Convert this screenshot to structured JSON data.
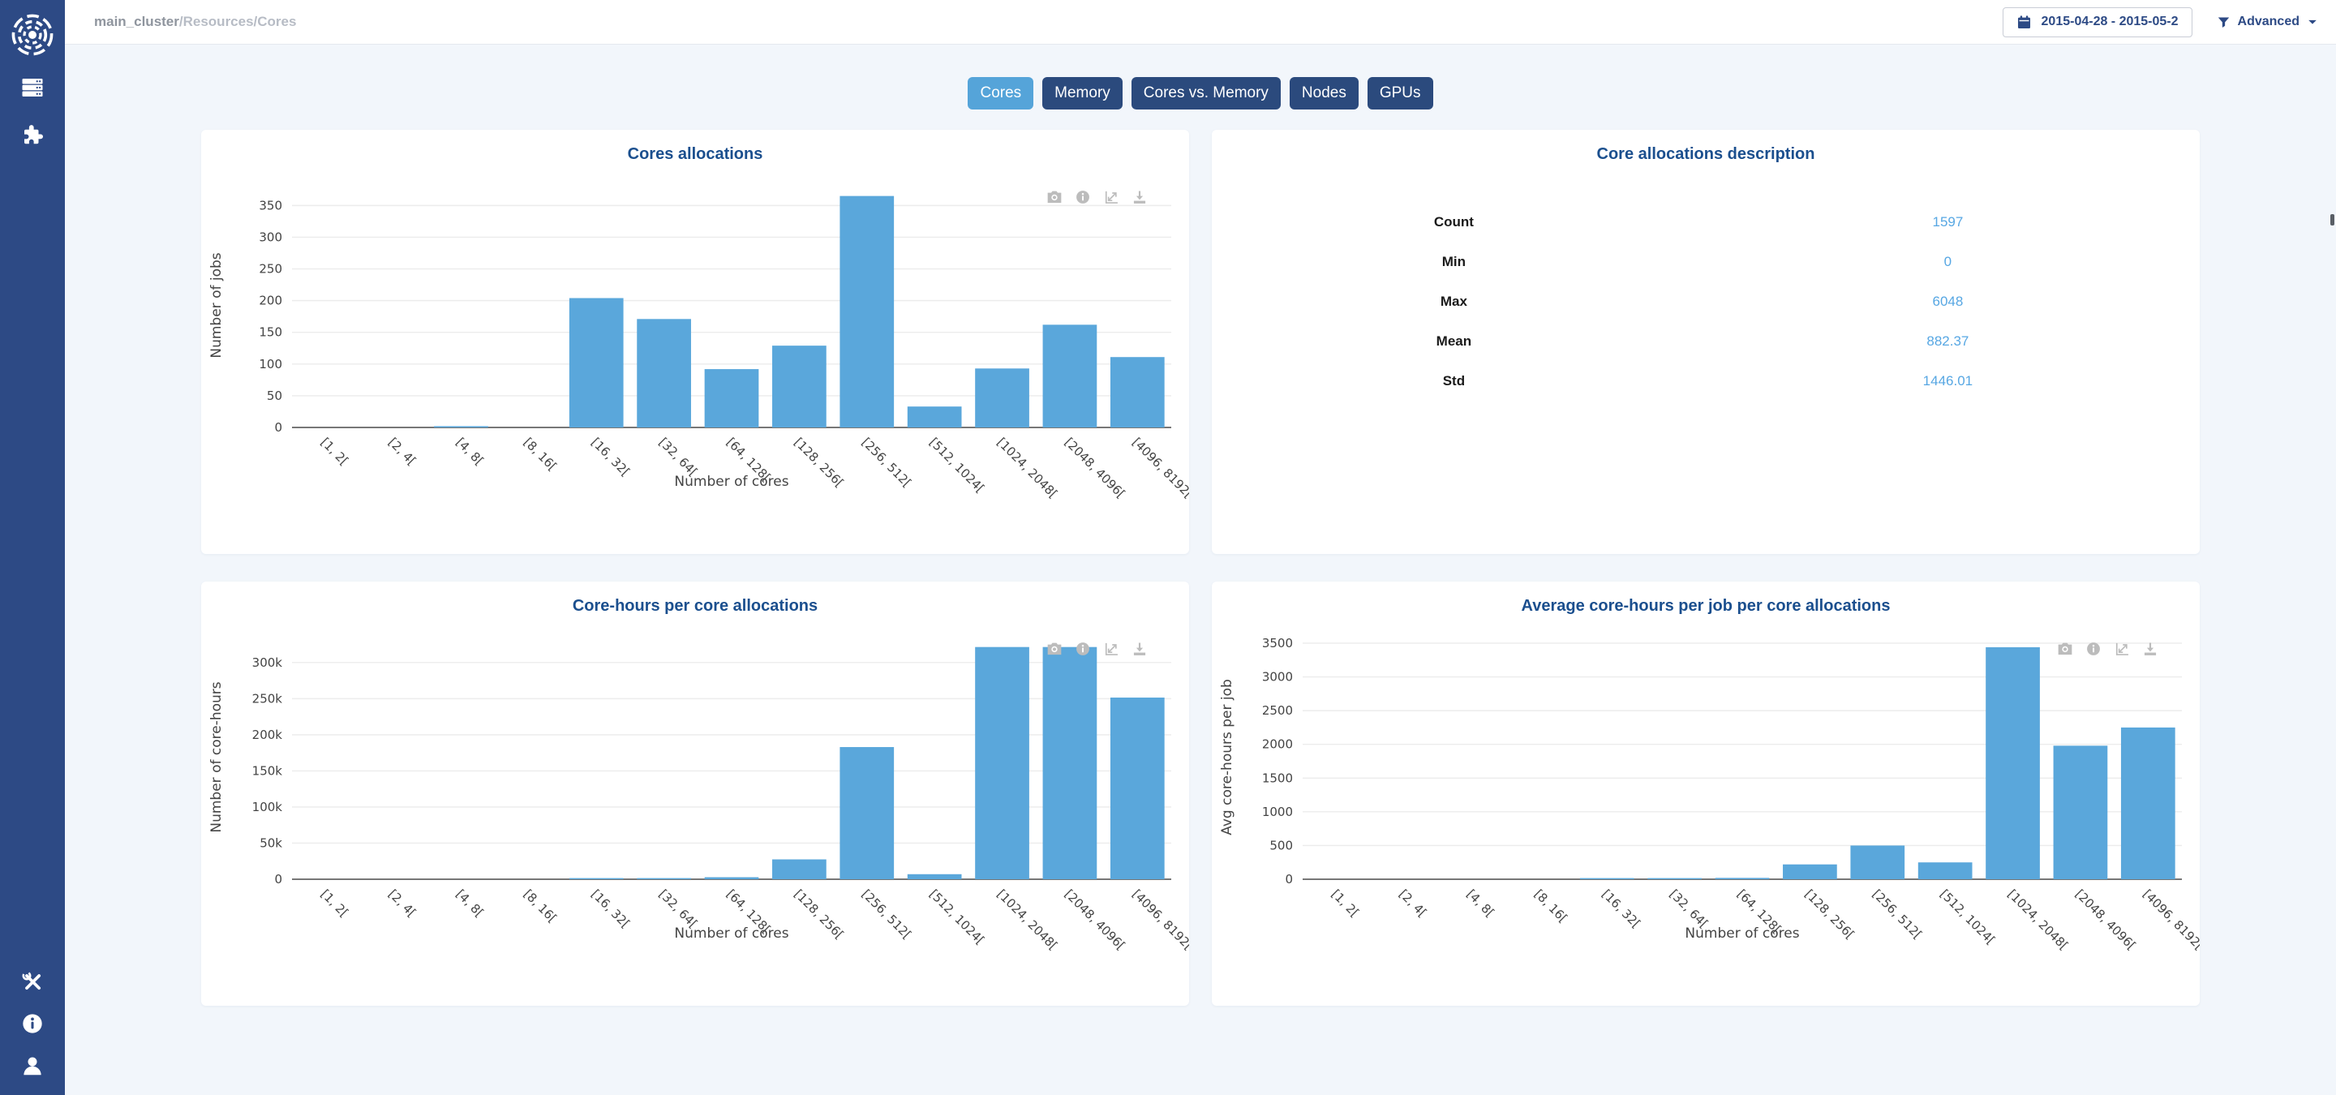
{
  "header": {
    "breadcrumb_main": "main_cluster",
    "breadcrumb_rest": "/Resources/Cores",
    "date_range": "2015-04-28 - 2015-05-2",
    "advanced_label": "Advanced"
  },
  "tabs": [
    {
      "label": "Cores",
      "active": true
    },
    {
      "label": "Memory",
      "active": false
    },
    {
      "label": "Cores vs. Memory",
      "active": false
    },
    {
      "label": "Nodes",
      "active": false
    },
    {
      "label": "GPUs",
      "active": false
    }
  ],
  "sidebar_icons": [
    "logo",
    "servers",
    "plugins",
    "tools",
    "info",
    "user"
  ],
  "modebar_icons": [
    "camera",
    "info",
    "autoscale",
    "download"
  ],
  "stats_panel": {
    "title": "Core allocations description",
    "rows": [
      {
        "label": "Count",
        "value": "1597"
      },
      {
        "label": "Min",
        "value": "0"
      },
      {
        "label": "Max",
        "value": "6048"
      },
      {
        "label": "Mean",
        "value": "882.37"
      },
      {
        "label": "Std",
        "value": "1446.01"
      }
    ]
  },
  "colors": {
    "sidebar": "#2d4a85",
    "tab_active": "#55a4d9",
    "tab_inactive": "#2b4a7d",
    "panel_title": "#1b4f8e",
    "bar": "#5aa7db",
    "stat_value": "#57a7e3",
    "page_background": "#f2f6fb"
  },
  "chart_data": [
    {
      "type": "bar",
      "title": "Cores allocations",
      "xlabel": "Number of cores",
      "ylabel": "Number of jobs",
      "categories": [
        "[1, 2[",
        "[2, 4[",
        "[4, 8[",
        "[8, 16[",
        "[16, 32[",
        "[32, 64[",
        "[64, 128[",
        "[128, 256[",
        "[256, 512[",
        "[512, 1024[",
        "[1024, 2048[",
        "[2048, 4096[",
        "[4096, 8192["
      ],
      "values": [
        0,
        0,
        2,
        0,
        204,
        171,
        92,
        129,
        365,
        33,
        93,
        162,
        111
      ],
      "ylim": [
        0,
        385
      ],
      "yticks": {
        "step": 50,
        "max": 350,
        "format": "plain"
      },
      "grid": true,
      "legend": "none",
      "bar_color": "#5aa7db"
    },
    {
      "type": "bar",
      "title": "Core-hours per core allocations",
      "xlabel": "Number of cores",
      "ylabel": "Number of core-hours",
      "categories": [
        "[1, 2[",
        "[2, 4[",
        "[4, 8[",
        "[8, 16[",
        "[16, 32[",
        "[32, 64[",
        "[64, 128[",
        "[128, 256[",
        "[256, 512[",
        "[512, 1024[",
        "[1024, 2048[",
        "[2048, 4096[",
        "[4096, 8192["
      ],
      "values": [
        0,
        0,
        0,
        0,
        1200,
        1500,
        2800,
        27500,
        183000,
        7000,
        321500,
        321500,
        251500
      ],
      "ylim": [
        0,
        338000
      ],
      "yticks": {
        "step": 50000,
        "max": 300000,
        "format": "k"
      },
      "grid": true,
      "legend": "none",
      "bar_color": "#5aa7db"
    },
    {
      "type": "bar",
      "title": "Average core-hours per job per core allocations",
      "xlabel": "Number of cores",
      "ylabel": "Avg core-hours per job",
      "categories": [
        "[1, 2[",
        "[2, 4[",
        "[4, 8[",
        "[8, 16[",
        "[16, 32[",
        "[32, 64[",
        "[64, 128[",
        "[128, 256[",
        "[256, 512[",
        "[512, 1024[",
        "[1024, 2048[",
        "[2048, 4096[",
        "[4096, 8192["
      ],
      "values": [
        0,
        0,
        0,
        0,
        5,
        8,
        20,
        220,
        500,
        250,
        3440,
        1980,
        2250
      ],
      "ylim": [
        0,
        3620
      ],
      "yticks": {
        "step": 500,
        "max": 3500,
        "format": "plain"
      },
      "grid": true,
      "legend": "none",
      "bar_color": "#5aa7db"
    }
  ]
}
